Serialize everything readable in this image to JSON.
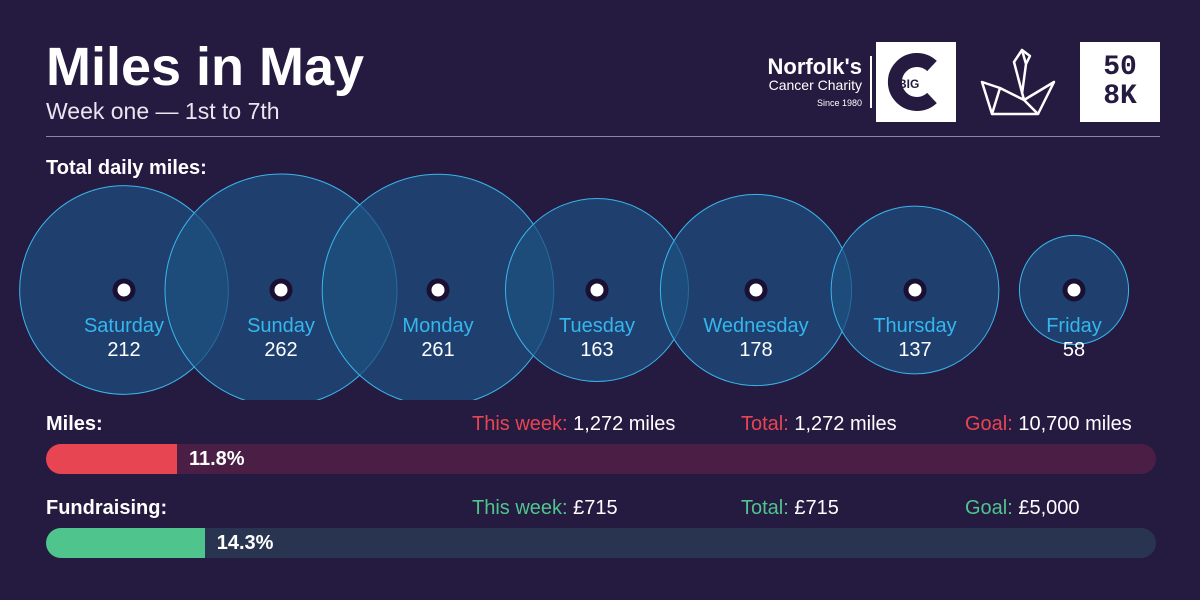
{
  "header": {
    "title": "Miles in May",
    "subtitle": "Week one — 1st to 7th"
  },
  "logos": {
    "charity_name": "Norfolk's",
    "charity_sub": "Cancer Charity",
    "charity_since": "Since 1980",
    "big_c_text": "BIG",
    "soak_text": [
      "50",
      "8K"
    ]
  },
  "daily_label": "Total daily miles:",
  "chart_data": {
    "type": "bubble",
    "categories": [
      "Saturday",
      "Sunday",
      "Monday",
      "Tuesday",
      "Wednesday",
      "Thursday",
      "Friday"
    ],
    "values": [
      212,
      262,
      261,
      163,
      178,
      137,
      58
    ]
  },
  "miles": {
    "label": "Miles:",
    "this_week_label": "This week:",
    "this_week_value": "1,272 miles",
    "total_label": "Total:",
    "total_value": "1,272 miles",
    "goal_label": "Goal:",
    "goal_value": "10,700 miles",
    "percent_text": "11.8%",
    "percent": 11.8
  },
  "fundraising": {
    "label": "Fundraising:",
    "this_week_label": "This week:",
    "this_week_value": "£715",
    "total_label": "Total:",
    "total_value": "£715",
    "goal_label": "Goal:",
    "goal_value": "£5,000",
    "percent_text": "14.3%",
    "percent": 14.3
  },
  "colors": {
    "background": "#251a40",
    "bubble_fill": "#1d4f7f",
    "bubble_stroke": "#3ab5ec",
    "day_label": "#35b6ee",
    "miles_fill": "#e84552",
    "miles_track": "#4b1f45",
    "funds_fill": "#50c48d",
    "funds_track": "#293550"
  }
}
